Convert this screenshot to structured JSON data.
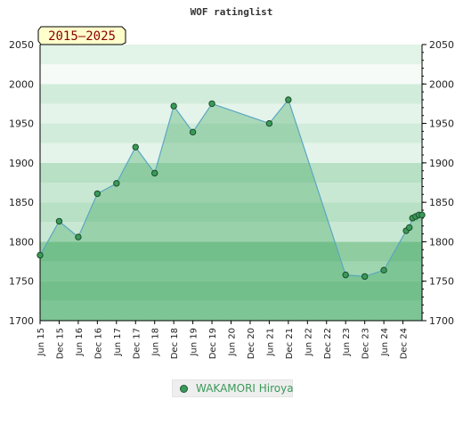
{
  "chart_data": {
    "type": "area",
    "title": "WOF ratinglist",
    "badge": "2015–2025",
    "ylim": [
      1700,
      2050
    ],
    "yticks": [
      1700,
      1750,
      1800,
      1850,
      1900,
      1950,
      2000,
      2050
    ],
    "x_tick_labels": [
      "Jun 15",
      "Dec 15",
      "Jun 16",
      "Dec 16",
      "Jun 17",
      "Dec 17",
      "Jun 18",
      "Dec 18",
      "Jun 19",
      "Dec 19",
      "Jun 20",
      "Dec 20",
      "Jun 21",
      "Dec 21",
      "Jun 22",
      "Dec 22",
      "Jun 23",
      "Dec 23",
      "Jun 24",
      "Dec 24"
    ],
    "x_range": [
      "2015-06",
      "2025-06"
    ],
    "grid": true,
    "legend_position": "bottom",
    "series": [
      {
        "name": "WAKAMORI Hiroya",
        "color": "#3a9a5a",
        "points": [
          {
            "x": "2015-06",
            "y": 1783
          },
          {
            "x": "2015-12",
            "y": 1826
          },
          {
            "x": "2016-06",
            "y": 1806
          },
          {
            "x": "2016-12",
            "y": 1861
          },
          {
            "x": "2017-06",
            "y": 1874
          },
          {
            "x": "2017-12",
            "y": 1920
          },
          {
            "x": "2018-06",
            "y": 1887
          },
          {
            "x": "2018-12",
            "y": 1972
          },
          {
            "x": "2019-06",
            "y": 1939
          },
          {
            "x": "2019-12",
            "y": 1975
          },
          {
            "x": "2021-06",
            "y": 1950
          },
          {
            "x": "2021-12",
            "y": 1980
          },
          {
            "x": "2023-06",
            "y": 1758
          },
          {
            "x": "2023-12",
            "y": 1756
          },
          {
            "x": "2024-06",
            "y": 1764
          },
          {
            "x": "2025-01",
            "y": 1814
          },
          {
            "x": "2025-02",
            "y": 1818
          },
          {
            "x": "2025-03",
            "y": 1830
          },
          {
            "x": "2025-04",
            "y": 1832
          },
          {
            "x": "2025-05",
            "y": 1834
          },
          {
            "x": "2025-06",
            "y": 1834
          }
        ]
      }
    ]
  }
}
